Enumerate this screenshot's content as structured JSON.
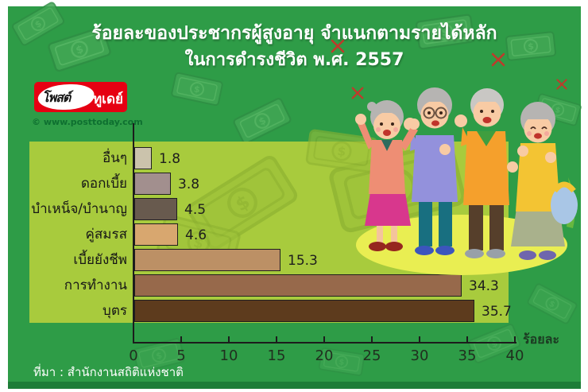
{
  "header": {
    "title_line1": "ร้อยละของประชากรผู้สูงอายุ จำแนกตามรายได้หลัก",
    "title_line2": "ในการดำรงชีวิต พ.ศ. 2557"
  },
  "logo": {
    "brand_part1": "โพสต์",
    "brand_part2": "ทูเดย์",
    "copyright": "© www.posttoday.com"
  },
  "chart_data": {
    "type": "bar",
    "orientation": "horizontal",
    "title": "ร้อยละของประชากรผู้สูงอายุ จำแนกตามรายได้หลัก ในการดำรงชีวิต พ.ศ. 2557",
    "categories": [
      "อื่นๆ",
      "ดอกเบี้ย",
      "บำเหน็จ/บำนาญ",
      "คู่สมรส",
      "เบี้ยยังชีพ",
      "การทำงาน",
      "บุตร"
    ],
    "values": [
      1.8,
      3.8,
      4.5,
      4.6,
      15.3,
      34.3,
      35.7
    ],
    "bar_colors": [
      "#cbc3ac",
      "#a28f8e",
      "#685a4e",
      "#d8a76f",
      "#bc9065",
      "#97694b",
      "#5d3b1d"
    ],
    "xlabel": "ร้อยละ",
    "x_ticks": [
      0,
      5,
      10,
      15,
      20,
      25,
      30,
      35,
      40
    ],
    "xlim": [
      0,
      40
    ],
    "grid": false,
    "legend": false
  },
  "footer": {
    "source": "ที่มา : สำนักงานสถิติแห่งชาติ"
  },
  "colors": {
    "background_green": "#2e9c47",
    "plot_green": "#a8cb3d",
    "footer_green": "#1e7d38",
    "logo_red": "#e60012",
    "oval_yellow": "#e9ee52",
    "banknote_green": "#41a654",
    "x_mark_red": "#bf3a2b",
    "title_white": "#ffffff"
  }
}
